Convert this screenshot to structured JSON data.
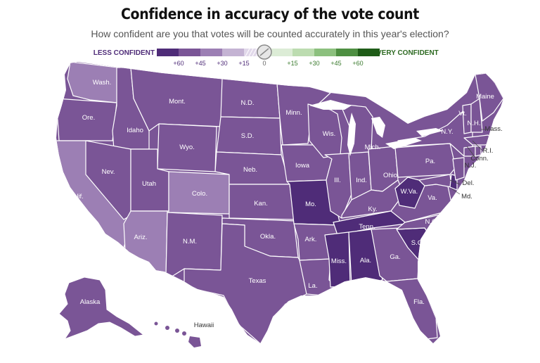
{
  "header": {
    "title": "Confidence in accuracy of the vote count",
    "subtitle": "How confident are you that votes will be counted accurately in this year's election?"
  },
  "legend": {
    "left_label": "LESS CONFIDENT",
    "right_label": "VERY CONFIDENT",
    "ticks": [
      "+60",
      "+45",
      "+30",
      "+15",
      "0",
      "+15",
      "+30",
      "+45",
      "+60"
    ],
    "colors": {
      "less": [
        "#4f2c78",
        "#7a5596",
        "#9c7fb4",
        "#c4b3d3",
        "#e1d8ea"
      ],
      "more": [
        "#dcecd6",
        "#bcdcb0",
        "#8cc07e",
        "#4e8f42",
        "#1f5c18"
      ],
      "less_label": "#4f2c78",
      "more_label": "#2e6a22",
      "more_tick": "#3a7a2d"
    }
  },
  "chart_data": {
    "type": "choropleth",
    "metric": "net less confident",
    "states": [
      {
        "name": "Wash.",
        "value": 30
      },
      {
        "name": "Ore.",
        "value": 45
      },
      {
        "name": "Calif.",
        "value": 30
      },
      {
        "name": "Idaho",
        "value": 45
      },
      {
        "name": "Nev.",
        "value": 45
      },
      {
        "name": "Mont.",
        "value": 45
      },
      {
        "name": "Wyo.",
        "value": 45
      },
      {
        "name": "Utah",
        "value": 45
      },
      {
        "name": "Ariz.",
        "value": 30
      },
      {
        "name": "Colo.",
        "value": 30
      },
      {
        "name": "N.M.",
        "value": 45
      },
      {
        "name": "N.D.",
        "value": 45
      },
      {
        "name": "S.D.",
        "value": 45
      },
      {
        "name": "Neb.",
        "value": 45
      },
      {
        "name": "Kan.",
        "value": 45
      },
      {
        "name": "Okla.",
        "value": 45
      },
      {
        "name": "Texas",
        "value": 45
      },
      {
        "name": "Minn.",
        "value": 45
      },
      {
        "name": "Iowa",
        "value": 45
      },
      {
        "name": "Mo.",
        "value": 60
      },
      {
        "name": "Ark.",
        "value": 45
      },
      {
        "name": "La.",
        "value": 45
      },
      {
        "name": "Wis.",
        "value": 45
      },
      {
        "name": "Ill.",
        "value": 45
      },
      {
        "name": "Mich.",
        "value": 45
      },
      {
        "name": "Ind.",
        "value": 45
      },
      {
        "name": "Ohio",
        "value": 45
      },
      {
        "name": "Ky.",
        "value": 45
      },
      {
        "name": "Tenn.",
        "value": 60
      },
      {
        "name": "Miss.",
        "value": 60
      },
      {
        "name": "Ala.",
        "value": 60
      },
      {
        "name": "Ga.",
        "value": 45
      },
      {
        "name": "Fla.",
        "value": 45
      },
      {
        "name": "S.C.",
        "value": 60
      },
      {
        "name": "N.C.",
        "value": 45
      },
      {
        "name": "Va.",
        "value": 45
      },
      {
        "name": "W.Va.",
        "value": 60
      },
      {
        "name": "Md.",
        "value": 45
      },
      {
        "name": "Del.",
        "value": 60
      },
      {
        "name": "Pa.",
        "value": 45
      },
      {
        "name": "N.Y.",
        "value": 45
      },
      {
        "name": "N.J.",
        "value": 45
      },
      {
        "name": "Conn.",
        "value": 45
      },
      {
        "name": "R.I.",
        "value": 45
      },
      {
        "name": "Mass.",
        "value": 45
      },
      {
        "name": "Vt.",
        "value": 45
      },
      {
        "name": "N.H.",
        "value": 45
      },
      {
        "name": "Maine",
        "value": 45
      },
      {
        "name": "Alaska",
        "value": 45
      },
      {
        "name": "Hawaii",
        "value": 45
      }
    ]
  }
}
